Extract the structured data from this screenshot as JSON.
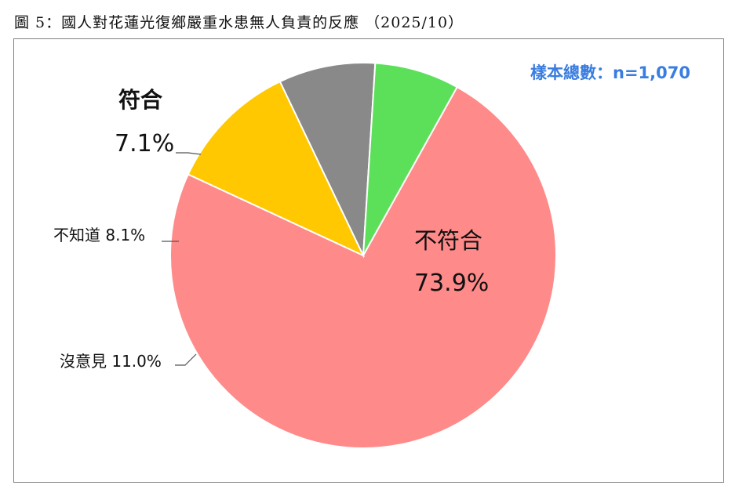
{
  "caption": "圖 5：國人對花蓮光復鄉嚴重水患無人負責的反應 （2025/10）",
  "sample_size": "樣本總數：n=1,070",
  "chart_data": {
    "type": "pie",
    "title": "",
    "slices": [
      {
        "name": "不符合",
        "value": 73.9,
        "label": "73.9%",
        "color": "#ff8a8a"
      },
      {
        "name": "沒意見",
        "value": 11.0,
        "label": "11.0%",
        "color": "#ffc800"
      },
      {
        "name": "不知道",
        "value": 8.1,
        "label": "8.1%",
        "color": "#898989"
      },
      {
        "name": "符合",
        "value": 7.1,
        "label": "7.1%",
        "color": "#5ce05a"
      }
    ]
  }
}
